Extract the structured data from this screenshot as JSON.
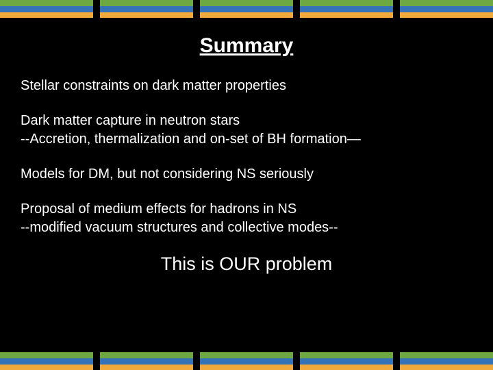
{
  "stripes": {
    "block_count": 5,
    "block_width": 136,
    "block_height": 26,
    "gap": 10,
    "bands": [
      {
        "color": "#6da843",
        "height": 9
      },
      {
        "color": "#3473b7",
        "height": 9
      },
      {
        "color": "#f2a93c",
        "height": 8
      }
    ]
  },
  "title": "Summary",
  "paragraphs": [
    [
      "Stellar constraints on dark matter properties"
    ],
    [
      "Dark matter capture in neutron stars",
      "--Accretion, thermalization and on-set of BH formation—"
    ],
    [
      "Models for DM, but not considering NS seriously"
    ],
    [
      "Proposal of medium effects for hadrons in NS",
      "--modified vacuum structures and collective modes--"
    ]
  ],
  "closing": "This is OUR problem",
  "colors": {
    "background": "#000000",
    "text": "#ffffff"
  },
  "fonts": {
    "title_size": 30,
    "body_size": 20,
    "closing_size": 27
  }
}
